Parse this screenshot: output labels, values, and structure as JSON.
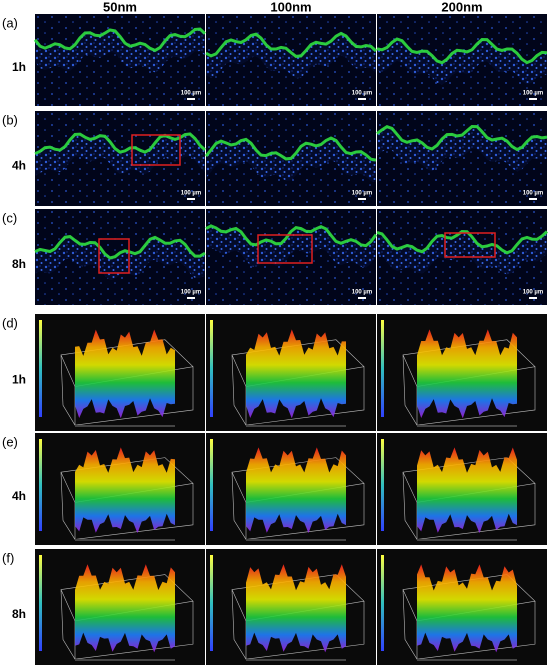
{
  "columns": [
    "50nm",
    "100nm",
    "200nm"
  ],
  "fluorescence": {
    "rows": [
      {
        "label": "(a)",
        "time": "1h"
      },
      {
        "label": "(b)",
        "time": "4h"
      },
      {
        "label": "(c)",
        "time": "8h"
      }
    ],
    "scale_bar": "100 µm"
  },
  "three_d": {
    "rows": [
      {
        "label": "(d)",
        "time": "1h"
      },
      {
        "label": "(e)",
        "time": "4h"
      },
      {
        "label": "(f)",
        "time": "8h"
      }
    ]
  }
}
